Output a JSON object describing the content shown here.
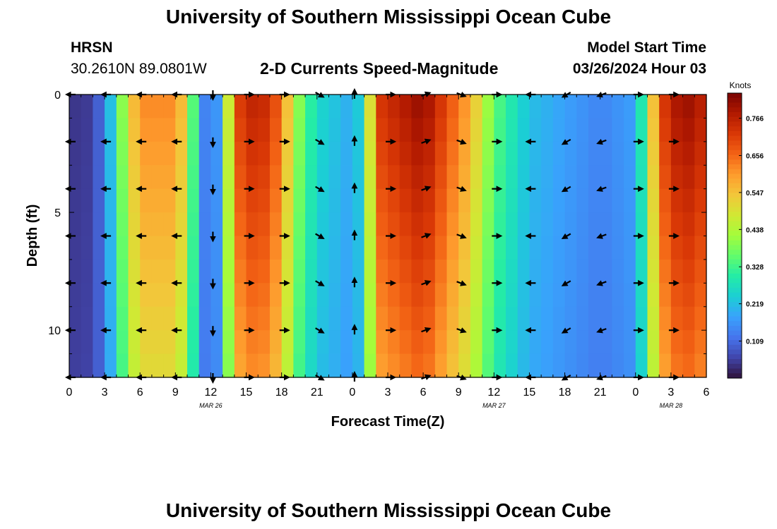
{
  "header": {
    "title": "University of Southern Mississippi Ocean Cube",
    "station": "HRSN",
    "coords": "30.2610N  89.0801W",
    "subtitle": "2-D Currents Speed-Magnitude",
    "model_label": "Model Start Time",
    "model_time": "03/26/2024 Hour 03"
  },
  "footer": {
    "title": "University of Southern Mississippi Ocean Cube"
  },
  "colors": {
    "turbo": [
      "#30123b",
      "#4145ab",
      "#4675ed",
      "#39a2fc",
      "#1bcfd4",
      "#24eca6",
      "#61fc6c",
      "#a4fc3b",
      "#d1e834",
      "#f3c63a",
      "#fe9b2d",
      "#f36315",
      "#d93806",
      "#b11901",
      "#7a0402"
    ]
  },
  "chart_data": {
    "type": "heatmap",
    "title": "2-D Currents Speed-Magnitude",
    "xlabel": "Forecast Time(Z)",
    "ylabel": "Depth (ft)",
    "x_ticks": [
      "0",
      "3",
      "6",
      "9",
      "12",
      "15",
      "18",
      "21",
      "0",
      "3",
      "6",
      "9",
      "12",
      "15",
      "18",
      "21",
      "0",
      "3",
      "6"
    ],
    "x_hours": [
      0,
      54
    ],
    "date_labels": [
      {
        "label": "MAR 26",
        "hour": 12
      },
      {
        "label": "MAR 27",
        "hour": 36
      },
      {
        "label": "MAR 28",
        "hour": 51
      }
    ],
    "y_ticks": [
      "0",
      "5",
      "10"
    ],
    "ylim": [
      0,
      12
    ],
    "colorbar": {
      "label": "Knots",
      "ticks": [
        "0.766",
        "0.656",
        "0.547",
        "0.438",
        "0.328",
        "0.219",
        "0.109"
      ],
      "range": [
        0,
        0.84
      ]
    },
    "depth_rows": [
      0,
      1,
      2,
      3,
      4,
      5,
      6,
      7,
      8,
      9,
      10,
      11
    ],
    "speed_profile": [
      {
        "hour": 0,
        "value": 0.04
      },
      {
        "hour": 2,
        "value": 0.05
      },
      {
        "hour": 3,
        "value": 0.14
      },
      {
        "hour": 4,
        "value": 0.3
      },
      {
        "hour": 5,
        "value": 0.5
      },
      {
        "hour": 6,
        "value": 0.62
      },
      {
        "hour": 9,
        "value": 0.62
      },
      {
        "hour": 10,
        "value": 0.5
      },
      {
        "hour": 11,
        "value": 0.2
      },
      {
        "hour": 12,
        "value": 0.08
      },
      {
        "hour": 13,
        "value": 0.25
      },
      {
        "hour": 14,
        "value": 0.7
      },
      {
        "hour": 16,
        "value": 0.78
      },
      {
        "hour": 18,
        "value": 0.66
      },
      {
        "hour": 19,
        "value": 0.44
      },
      {
        "hour": 21,
        "value": 0.26
      },
      {
        "hour": 24,
        "value": 0.19
      },
      {
        "hour": 25,
        "value": 0.28
      },
      {
        "hour": 26,
        "value": 0.72
      },
      {
        "hour": 30,
        "value": 0.82
      },
      {
        "hour": 34,
        "value": 0.58
      },
      {
        "hour": 36,
        "value": 0.36
      },
      {
        "hour": 39,
        "value": 0.22
      },
      {
        "hour": 42,
        "value": 0.18
      },
      {
        "hour": 45,
        "value": 0.14
      },
      {
        "hour": 48,
        "value": 0.18
      },
      {
        "hour": 49,
        "value": 0.4
      },
      {
        "hour": 50,
        "value": 0.7
      },
      {
        "hour": 52,
        "value": 0.82
      },
      {
        "hour": 54,
        "value": 0.76
      }
    ],
    "vector_depths": [
      0,
      2,
      4,
      6,
      8,
      10,
      12
    ],
    "vectors": [
      {
        "hour": 0,
        "angle": 180
      },
      {
        "hour": 3,
        "angle": 180
      },
      {
        "hour": 6,
        "angle": 180
      },
      {
        "hour": 9,
        "angle": 180
      },
      {
        "hour": 12,
        "angle": 270
      },
      {
        "hour": 15,
        "angle": 0
      },
      {
        "hour": 18,
        "angle": 0
      },
      {
        "hour": 21,
        "angle": 330
      },
      {
        "hour": 24,
        "angle": 90
      },
      {
        "hour": 27,
        "angle": 0
      },
      {
        "hour": 30,
        "angle": 20
      },
      {
        "hour": 33,
        "angle": 340
      },
      {
        "hour": 36,
        "angle": 0
      },
      {
        "hour": 39,
        "angle": 180
      },
      {
        "hour": 42,
        "angle": 210
      },
      {
        "hour": 45,
        "angle": 200
      },
      {
        "hour": 48,
        "angle": 0
      },
      {
        "hour": 51,
        "angle": 0
      }
    ]
  }
}
